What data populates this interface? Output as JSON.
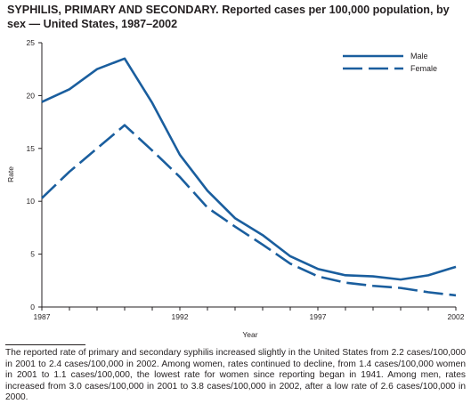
{
  "title": {
    "bold": "SYPHILIS, PRIMARY AND SECONDARY.",
    "rest": "Reported cases per 100,000 population, by sex — United States, 1987–2002"
  },
  "chart_data": {
    "type": "line",
    "xlabel": "Year",
    "ylabel": "Rate",
    "xlim": [
      1987,
      2002
    ],
    "ylim": [
      0,
      25
    ],
    "x_ticks": [
      "1987",
      "1992",
      "1997",
      "2002"
    ],
    "y_ticks": [
      "0",
      "5",
      "10",
      "15",
      "20",
      "25"
    ],
    "grid": false,
    "legend_position": "top-right",
    "x": [
      1987,
      1988,
      1989,
      1990,
      1991,
      1992,
      1993,
      1994,
      1995,
      1996,
      1997,
      1998,
      1999,
      2000,
      2001,
      2002
    ],
    "series": [
      {
        "name": "Male",
        "style": "solid",
        "color": "#1a5e9e",
        "values": [
          19.4,
          20.6,
          22.5,
          23.5,
          19.3,
          14.4,
          11.0,
          8.4,
          6.8,
          4.8,
          3.6,
          3.0,
          2.9,
          2.6,
          3.0,
          3.8
        ]
      },
      {
        "name": "Female",
        "style": "dashed",
        "color": "#1a5e9e",
        "values": [
          10.3,
          12.8,
          15.0,
          17.2,
          14.8,
          12.3,
          9.4,
          7.6,
          5.9,
          4.1,
          2.9,
          2.3,
          2.0,
          1.8,
          1.4,
          1.1
        ]
      }
    ]
  },
  "footnote": "The reported rate of primary and secondary syphilis increased slightly in the United States from 2.2 cases/100,000 in 2001 to 2.4 cases/100,000 in 2002. Among women, rates continued to decline, from 1.4 cases/100,000 women in 2001 to 1.1 cases/100,000, the lowest rate for women since reporting began in 1941. Among men, rates increased from 3.0 cases/100,000 in 2001 to 3.8 cases/100,000 in 2002, after a low rate of 2.6 cases/100,000 in 2000."
}
